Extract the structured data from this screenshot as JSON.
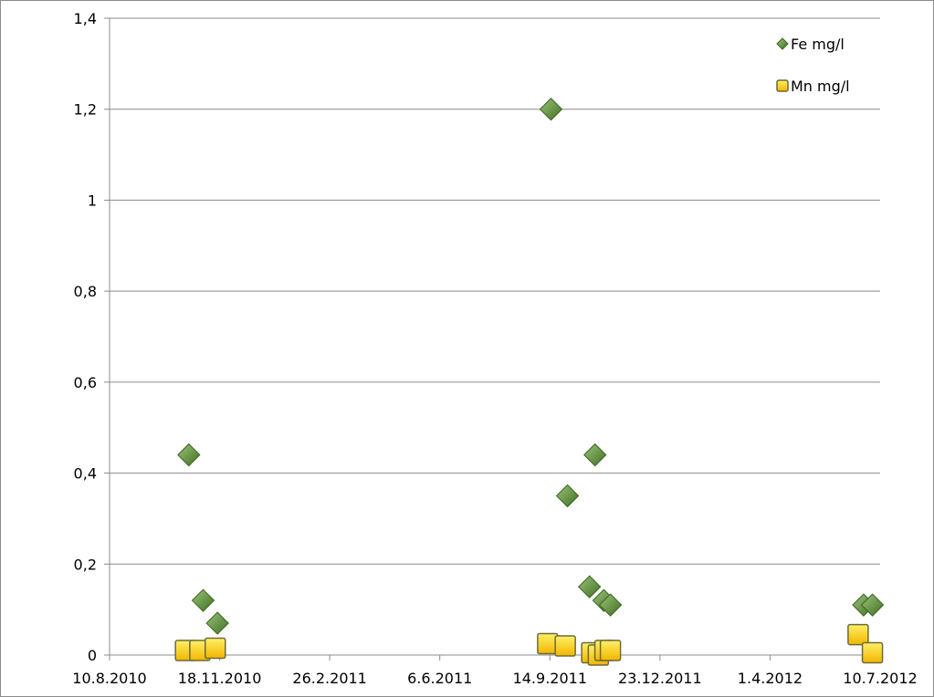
{
  "chart_data": {
    "type": "scatter",
    "title": "",
    "xlabel": "",
    "ylabel": "",
    "x_axis": {
      "type": "date",
      "min": "2010-08-10",
      "max": "2012-07-10",
      "tick_labels": [
        "10.8.2010",
        "18.11.2010",
        "26.2.2011",
        "6.6.2011",
        "14.9.2011",
        "23.12.2011",
        "1.4.2012",
        "10.7.2012"
      ],
      "tick_dates": [
        "2010-08-10",
        "2010-11-18",
        "2011-02-26",
        "2011-06-06",
        "2011-09-14",
        "2011-12-23",
        "2012-04-01",
        "2012-07-10"
      ]
    },
    "y_axis": {
      "min": 0,
      "max": 1.4,
      "ticks": [
        0,
        0.2,
        0.4,
        0.6,
        0.8,
        1.0,
        1.2,
        1.4
      ],
      "tick_labels": [
        "0",
        "0,2",
        "0,4",
        "0,6",
        "0,8",
        "1",
        "1,2",
        "1,4"
      ]
    },
    "grid": "horizontal",
    "legend_position": "top-right",
    "series": [
      {
        "name": "Fe mg/l",
        "marker": "diamond",
        "color": "#5e8c3a",
        "points": [
          {
            "x": "2010-10-21",
            "y": 0.44
          },
          {
            "x": "2010-11-03",
            "y": 0.12
          },
          {
            "x": "2010-11-16",
            "y": 0.07
          },
          {
            "x": "2011-09-15",
            "y": 1.2
          },
          {
            "x": "2011-09-30",
            "y": 0.35
          },
          {
            "x": "2011-10-20",
            "y": 0.15
          },
          {
            "x": "2011-10-25",
            "y": 0.44
          },
          {
            "x": "2011-11-02",
            "y": 0.12
          },
          {
            "x": "2011-11-08",
            "y": 0.11
          },
          {
            "x": "2012-06-25",
            "y": 0.11
          },
          {
            "x": "2012-07-03",
            "y": 0.11
          }
        ]
      },
      {
        "name": "Mn mg/l",
        "marker": "square",
        "color": "#ffd400",
        "points": [
          {
            "x": "2010-10-18",
            "y": 0.01
          },
          {
            "x": "2010-10-31",
            "y": 0.01
          },
          {
            "x": "2010-11-14",
            "y": 0.015
          },
          {
            "x": "2011-09-12",
            "y": 0.025
          },
          {
            "x": "2011-09-28",
            "y": 0.02
          },
          {
            "x": "2011-10-22",
            "y": 0.005
          },
          {
            "x": "2011-10-28",
            "y": 0.0
          },
          {
            "x": "2011-11-03",
            "y": 0.01
          },
          {
            "x": "2011-11-08",
            "y": 0.01
          },
          {
            "x": "2012-06-20",
            "y": 0.045
          },
          {
            "x": "2012-07-03",
            "y": 0.005
          }
        ]
      }
    ]
  }
}
